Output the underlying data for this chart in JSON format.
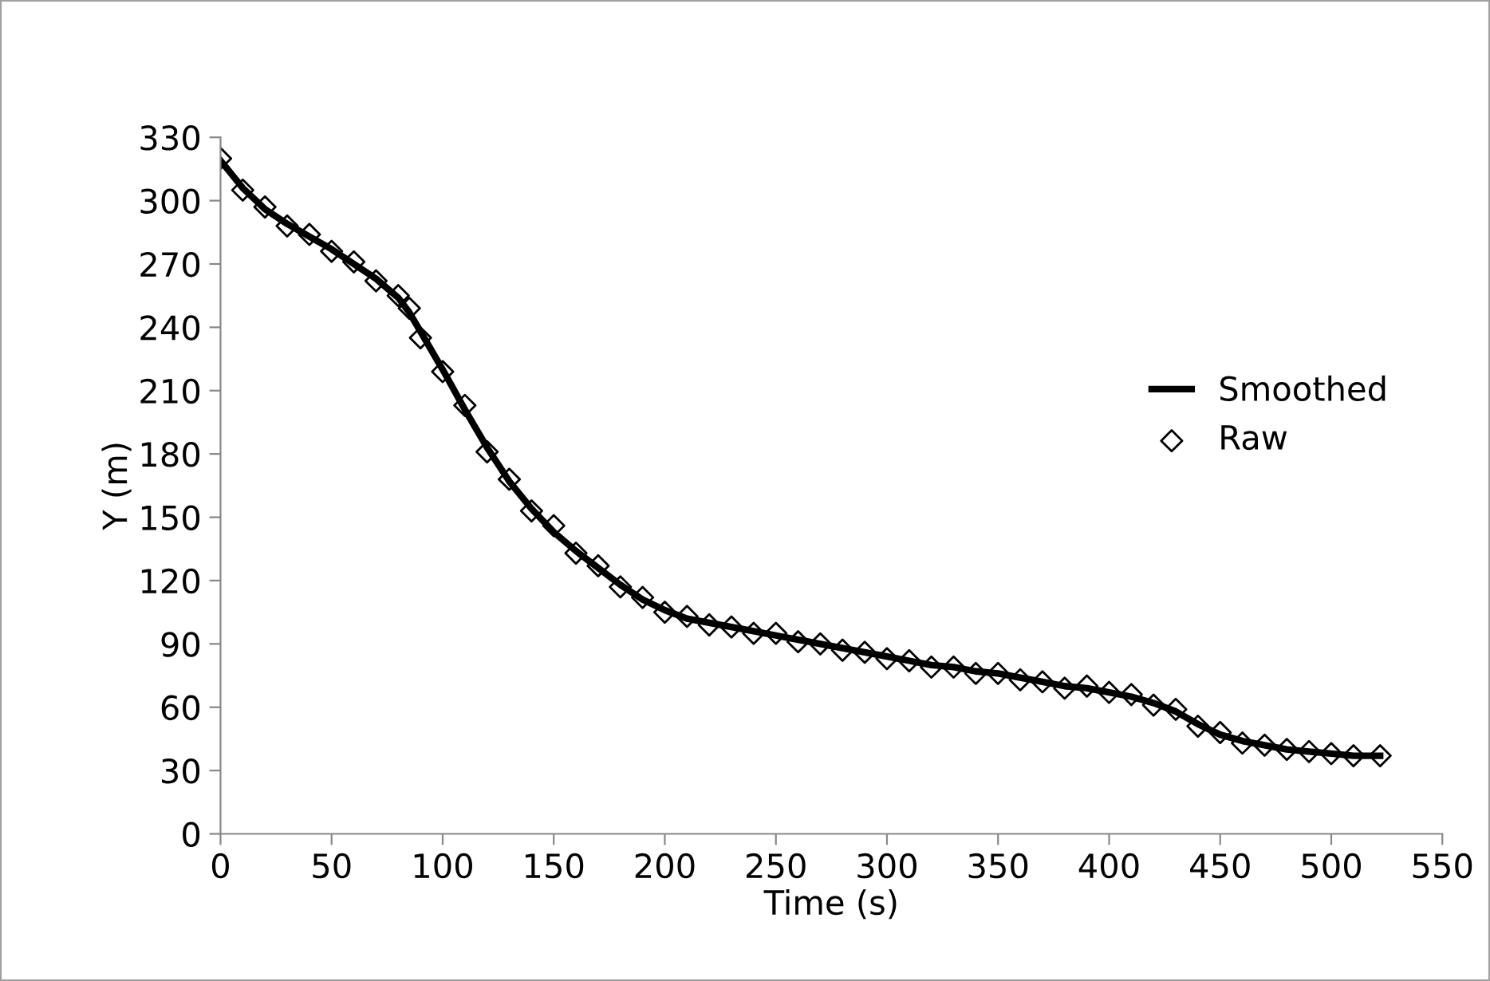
{
  "chart_data": {
    "type": "line",
    "xlabel": "Time (s)",
    "ylabel": "Y (m)",
    "xlim": [
      0,
      550
    ],
    "xticks": [
      0,
      50,
      100,
      150,
      200,
      250,
      300,
      350,
      400,
      450,
      500,
      550
    ],
    "ylim": [
      0,
      330
    ],
    "yticks": [
      0,
      30,
      60,
      90,
      120,
      150,
      180,
      210,
      240,
      270,
      300,
      330
    ],
    "grid": false,
    "legend": "right",
    "series": [
      {
        "name": "Smoothed",
        "type": "line",
        "color": "#000000",
        "marker": "none",
        "line_style": "solid",
        "x": [
          0,
          10,
          20,
          30,
          40,
          50,
          60,
          70,
          80,
          85,
          90,
          100,
          110,
          120,
          130,
          140,
          150,
          160,
          170,
          180,
          190,
          200,
          210,
          220,
          230,
          240,
          250,
          260,
          270,
          280,
          290,
          300,
          310,
          320,
          330,
          340,
          350,
          360,
          370,
          380,
          390,
          400,
          410,
          420,
          430,
          440,
          450,
          460,
          470,
          480,
          490,
          500,
          510,
          522
        ],
        "values": [
          319,
          306,
          296,
          289,
          283,
          277,
          270,
          263,
          254,
          247,
          238,
          220,
          201,
          183,
          167,
          154,
          143,
          134,
          126,
          118,
          111,
          106,
          102,
          100,
          98,
          96,
          94,
          92,
          90,
          88,
          86,
          84,
          82,
          80,
          79,
          77,
          76,
          74,
          72,
          70,
          69,
          67,
          65,
          62,
          58,
          52,
          47,
          44,
          42,
          40,
          39,
          38,
          37,
          37
        ]
      },
      {
        "name": "Raw",
        "type": "scatter",
        "color": "#000000",
        "marker": "diamond",
        "x": [
          0,
          10,
          20,
          30,
          40,
          50,
          60,
          70,
          80,
          85,
          90,
          100,
          110,
          120,
          130,
          140,
          150,
          160,
          170,
          180,
          190,
          200,
          210,
          220,
          230,
          240,
          250,
          260,
          270,
          280,
          290,
          300,
          310,
          320,
          330,
          340,
          350,
          360,
          370,
          380,
          390,
          400,
          410,
          420,
          430,
          440,
          450,
          460,
          470,
          480,
          490,
          500,
          510,
          522
        ],
        "values": [
          320,
          305,
          297,
          288,
          284,
          276,
          271,
          262,
          255,
          249,
          235,
          219,
          203,
          181,
          168,
          153,
          146,
          133,
          127,
          117,
          112,
          105,
          103,
          99,
          98,
          95,
          95,
          91,
          90,
          87,
          86,
          83,
          82,
          79,
          79,
          76,
          76,
          73,
          72,
          69,
          70,
          67,
          66,
          61,
          59,
          51,
          48,
          43,
          42,
          40,
          39,
          38,
          37,
          37
        ]
      }
    ]
  }
}
